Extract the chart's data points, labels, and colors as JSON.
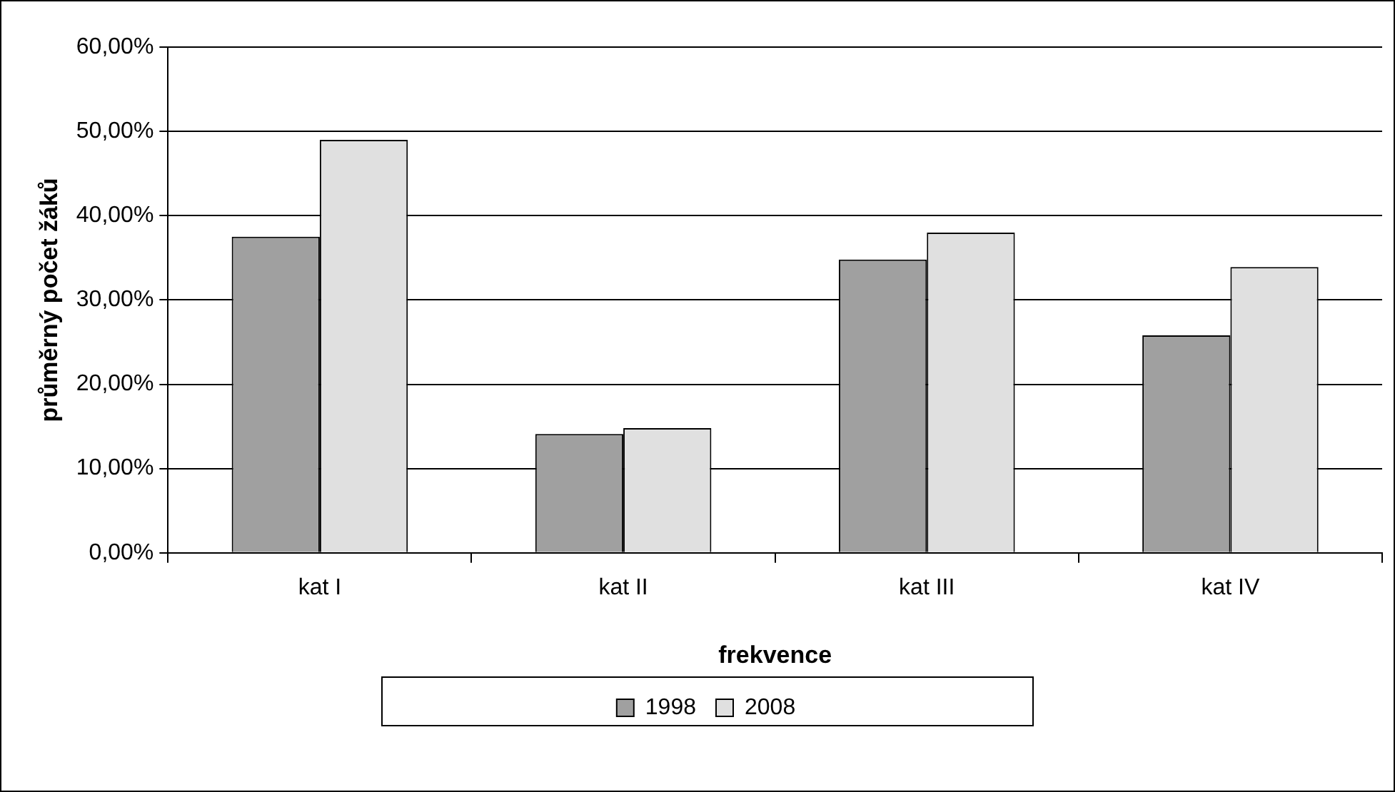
{
  "chart_data": {
    "type": "bar",
    "xlabel": "frekvence",
    "ylabel": "průměrný počet žáků",
    "categories": [
      "kat I",
      "kat II",
      "kat III",
      "kat IV"
    ],
    "series": [
      {
        "name": "1998",
        "color": "#a0a0a0",
        "values": [
          37.5,
          14.1,
          34.8,
          25.8
        ]
      },
      {
        "name": "2008",
        "color": "#e0e0e0",
        "values": [
          49.0,
          14.8,
          38.0,
          33.9
        ]
      }
    ],
    "ylim": [
      0,
      60
    ],
    "yticks": [
      {
        "value": 0,
        "label": "0,00%"
      },
      {
        "value": 10,
        "label": "10,00%"
      },
      {
        "value": 20,
        "label": "20,00%"
      },
      {
        "value": 30,
        "label": "30,00%"
      },
      {
        "value": 40,
        "label": "40,00%"
      },
      {
        "value": 50,
        "label": "50,00%"
      },
      {
        "value": 60,
        "label": "60,00%"
      }
    ],
    "grid": "y",
    "legend": "bottom"
  }
}
